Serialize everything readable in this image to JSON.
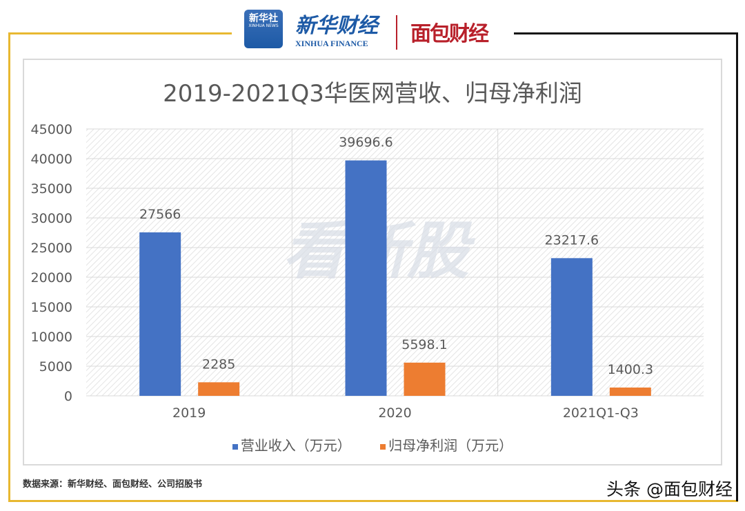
{
  "header": {
    "logo_xinhua_badge": "新华社",
    "logo_xinhua_badge_sub": "XINHUA NEWS",
    "logo_cn": "新华财经",
    "logo_en": "XINHUA FINANCE",
    "logo_mianbao": "面包财经"
  },
  "colors": {
    "revenue": "#4472c4",
    "profit": "#ed7d31",
    "gold": "#e8b830"
  },
  "chart_data": {
    "type": "bar",
    "title": "2019-2021Q3华医网营收、归母净利润",
    "categories": [
      "2019",
      "2020",
      "2021Q1-Q3"
    ],
    "series": [
      {
        "name": "营业收入（万元）",
        "values": [
          27566,
          39696.6,
          23217.6
        ],
        "labels": [
          "27566",
          "39696.6",
          "23217.6"
        ]
      },
      {
        "name": "归母净利润（万元）",
        "values": [
          2285,
          5598.1,
          1400.3
        ],
        "labels": [
          "2285",
          "5598.1",
          "1400.3"
        ]
      }
    ],
    "ylim": [
      0,
      45000
    ],
    "yticks": [
      "0",
      "5000",
      "10000",
      "15000",
      "20000",
      "25000",
      "30000",
      "35000",
      "40000",
      "45000"
    ],
    "grid": true,
    "legend": "bottom",
    "watermark": "看新股"
  },
  "footer": {
    "source": "数据来源：新华财经、面包财经、公司招股书",
    "watermark": "头条 @面包财经"
  }
}
